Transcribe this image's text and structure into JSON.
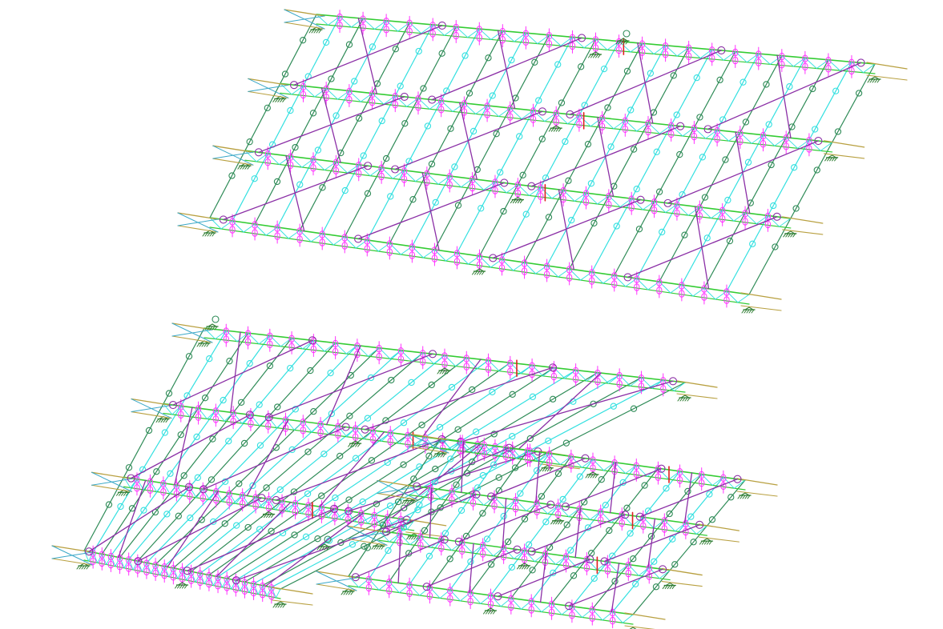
{
  "view": {
    "background": "#ffffff",
    "projection": "isometric",
    "labels_shown": false
  },
  "colors": {
    "longitudinal": "#2e8b57",
    "longitudinal_alt": "#33e0e0",
    "transverse_beam": "#33cc33",
    "bracing_diagonal": "#8b2fa6",
    "bracing_x": "#2e8b57",
    "end_frame": "#b8a040",
    "hinge_release": "#ff33ff",
    "node_release": "#2e8b57",
    "support": "#2e7d32",
    "rigid_link": "#e02020",
    "edge_cross": "#3aa8c8"
  },
  "legend_items": [
    {
      "name": "support-icon"
    },
    {
      "name": "node-release-icon"
    },
    {
      "name": "hinge-release-icon"
    }
  ]
}
